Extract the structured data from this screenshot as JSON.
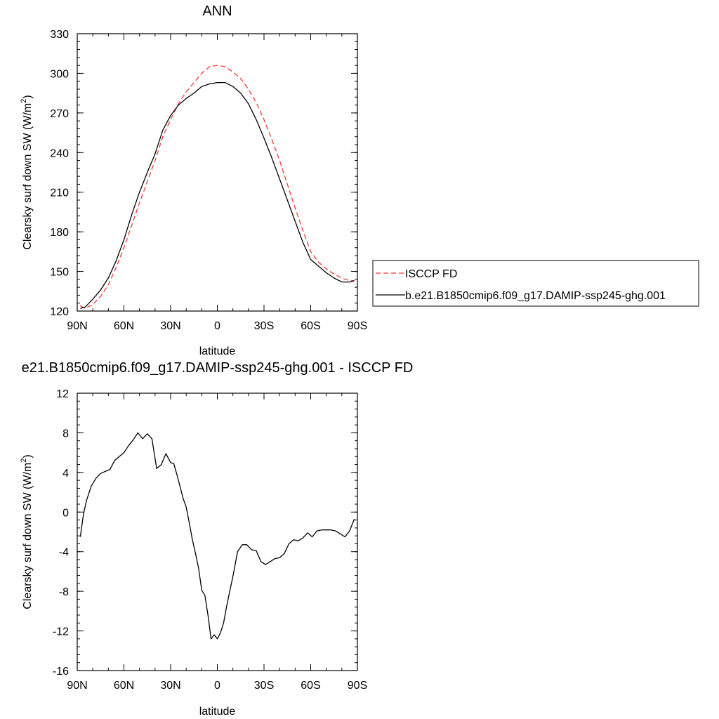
{
  "chart_data": [
    {
      "type": "line",
      "title": "ANN",
      "xlabel": "latitude",
      "ylabel": "Clearsky surf down SW (W/m",
      "ylabel_sup": "2",
      "ylabel_tail": ")",
      "xlim": [
        -90,
        90
      ],
      "ylim": [
        120,
        330
      ],
      "x_ticks": [
        -90,
        -60,
        -30,
        0,
        30,
        60,
        90
      ],
      "x_tick_labels": [
        "90N",
        "60N",
        "30N",
        "0",
        "30S",
        "60S",
        "90S"
      ],
      "y_ticks": [
        120,
        150,
        180,
        210,
        240,
        270,
        300,
        330
      ],
      "y_tick_labels": [
        "120",
        "150",
        "180",
        "210",
        "240",
        "270",
        "300",
        "330"
      ],
      "legend": "right",
      "series": [
        {
          "name": "ISCCP FD",
          "color": "#ff3333",
          "dash": "dashed",
          "x": [
            -88,
            -85,
            -80,
            -75,
            -70,
            -65,
            -60,
            -55,
            -50,
            -45,
            -40,
            -35,
            -30,
            -25,
            -20,
            -15,
            -10,
            -5,
            0,
            5,
            10,
            15,
            20,
            25,
            30,
            35,
            40,
            45,
            50,
            55,
            60,
            65,
            70,
            75,
            80,
            85,
            88
          ],
          "y": [
            124,
            122,
            125,
            131,
            140,
            153,
            168,
            185,
            202,
            218,
            234,
            252,
            265,
            277,
            286,
            293,
            300,
            305,
            306,
            305,
            301,
            296,
            288,
            278,
            265,
            250,
            234,
            216,
            198,
            181,
            165,
            157,
            152,
            148,
            145,
            143,
            143
          ]
        },
        {
          "name": "b.e21.B1850cmip6.f09_g17.DAMIP-ssp245-ghg.001",
          "color": "#000000",
          "dash": "solid",
          "x": [
            -88,
            -85,
            -80,
            -75,
            -70,
            -65,
            -60,
            -55,
            -50,
            -45,
            -40,
            -35,
            -30,
            -25,
            -20,
            -15,
            -10,
            -5,
            0,
            5,
            10,
            15,
            20,
            25,
            30,
            35,
            40,
            45,
            50,
            55,
            60,
            65,
            70,
            75,
            80,
            85,
            88
          ],
          "y": [
            122,
            123,
            129,
            136,
            145,
            158,
            174,
            193,
            210,
            225,
            239,
            257,
            268,
            276,
            281,
            285,
            290,
            292,
            293,
            293,
            290,
            285,
            277,
            265,
            251,
            236,
            220,
            204,
            188,
            172,
            159,
            154,
            149,
            145,
            142,
            142,
            143
          ]
        }
      ]
    },
    {
      "type": "line",
      "title": "e21.B1850cmip6.f09_g17.DAMIP-ssp245-ghg.001 - ISCCP FD",
      "xlabel": "latitude",
      "ylabel": "Clearsky surf down SW (W/m",
      "ylabel_sup": "2",
      "ylabel_tail": ")",
      "xlim": [
        -90,
        90
      ],
      "ylim": [
        -16,
        12
      ],
      "x_ticks": [
        -90,
        -60,
        -30,
        0,
        30,
        60,
        90
      ],
      "x_tick_labels": [
        "90N",
        "60N",
        "30N",
        "0",
        "30S",
        "60S",
        "90S"
      ],
      "y_ticks": [
        -16,
        -12,
        -8,
        -4,
        0,
        4,
        8,
        12
      ],
      "y_tick_labels": [
        "-16",
        "-12",
        "-8",
        "-4",
        "0",
        "4",
        "8",
        "12"
      ],
      "legend": "none",
      "series": [
        {
          "color": "#000000",
          "dash": "solid",
          "x": [
            -88,
            -86,
            -84,
            -81,
            -78,
            -75,
            -72,
            -69,
            -66,
            -63,
            -60,
            -57,
            -54,
            -51,
            -48,
            -45,
            -42,
            -39,
            -36,
            -33,
            -30,
            -28,
            -26,
            -24,
            -22,
            -20,
            -18,
            -16,
            -14,
            -12,
            -10,
            -8,
            -6,
            -4,
            -2,
            0,
            2,
            4,
            6,
            8,
            10,
            13,
            16,
            19,
            22,
            25,
            28,
            31,
            34,
            37,
            40,
            43,
            46,
            49,
            52,
            55,
            58,
            61,
            64,
            67,
            70,
            73,
            76,
            79,
            82,
            85,
            88
          ],
          "y": [
            -2.5,
            -0.2,
            1.2,
            2.6,
            3.4,
            3.9,
            4.1,
            4.3,
            5.2,
            5.6,
            6.0,
            6.7,
            7.3,
            8.0,
            7.4,
            7.9,
            7.4,
            4.4,
            4.8,
            5.9,
            5.0,
            4.9,
            3.8,
            2.6,
            1.4,
            0.5,
            -1.1,
            -2.8,
            -4.2,
            -5.7,
            -7.9,
            -8.4,
            -10.4,
            -12.8,
            -12.4,
            -12.8,
            -12.2,
            -11.2,
            -9.5,
            -8.0,
            -6.5,
            -4.0,
            -3.3,
            -3.3,
            -3.8,
            -3.9,
            -5.0,
            -5.3,
            -5.0,
            -4.7,
            -4.6,
            -4.2,
            -3.2,
            -2.8,
            -2.9,
            -2.6,
            -2.1,
            -2.5,
            -1.9,
            -1.8,
            -1.8,
            -1.8,
            -1.9,
            -2.2,
            -2.5,
            -1.9,
            -0.7
          ]
        }
      ]
    }
  ]
}
